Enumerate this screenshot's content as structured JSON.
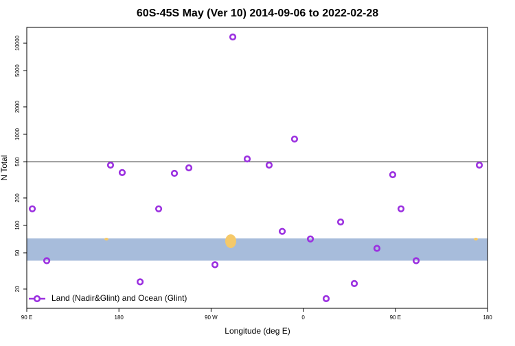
{
  "chart_data": {
    "type": "scatter",
    "title": "60S-45S May (Ver 10)   2014-09-06 to 2022-02-28",
    "x_label": "Longitude (deg E)",
    "y_label": "N Total",
    "log_y": true,
    "xlim": [
      90,
      540
    ],
    "ylim": [
      12.3,
      14900
    ],
    "xticks": [
      {
        "value": 90,
        "label": "90 E"
      },
      {
        "value": 180,
        "label": "180"
      },
      {
        "value": 270,
        "label": "90 W"
      },
      {
        "value": 360,
        "label": "0"
      },
      {
        "value": 450,
        "label": "90 E"
      },
      {
        "value": 540,
        "label": "180"
      }
    ],
    "yticks": [
      20,
      50,
      100,
      200,
      500,
      1000,
      2000,
      5000,
      10000
    ],
    "reference_line": 500,
    "band": [
      41,
      72
    ],
    "band_color": "#a7bcdb",
    "legend_position": "bottom-left",
    "series": [
      {
        "name": "Land (Nadir&Glint) and Ocean (Glint)",
        "color": "#9b30e0",
        "x": [
          95.4,
          109.5,
          171.8,
          183.2,
          200.7,
          218.8,
          234.2,
          248.3,
          273.8,
          291.2,
          305.3,
          326.7,
          339.5,
          351.5,
          367,
          382.4,
          396.5,
          409.9,
          432,
          447.4,
          455.5,
          470.3,
          532
        ],
        "values": [
          152,
          41,
          459,
          380,
          24,
          152,
          373,
          428,
          37,
          11700,
          536,
          459,
          86,
          887,
          71,
          15.7,
          109,
          23,
          56,
          360,
          152,
          41,
          459
        ]
      }
    ]
  }
}
